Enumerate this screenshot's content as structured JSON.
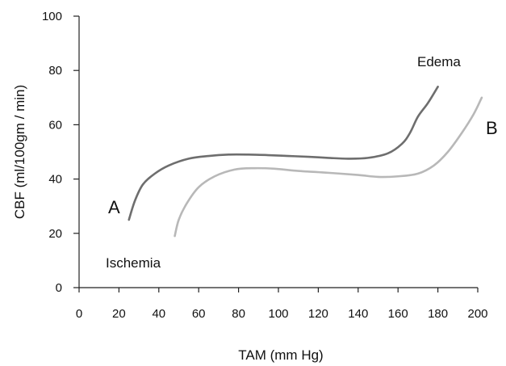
{
  "chart_data": {
    "type": "line",
    "title": "",
    "xlabel": "TAM (mm Hg)",
    "ylabel": "CBF (ml/100gm / min)",
    "xlim": [
      0,
      200
    ],
    "ylim": [
      0,
      100
    ],
    "x_ticks": [
      0,
      20,
      40,
      60,
      80,
      100,
      120,
      140,
      160,
      180,
      200
    ],
    "y_ticks": [
      0,
      20,
      40,
      60,
      80,
      100
    ],
    "grid": false,
    "series": [
      {
        "name": "A",
        "color": "#6e6e6e",
        "x": [
          25,
          28,
          32,
          38,
          45,
          55,
          65,
          75,
          85,
          95,
          105,
          115,
          125,
          135,
          145,
          155,
          162,
          166,
          170,
          175,
          180
        ],
        "y": [
          25,
          32,
          38,
          42,
          45,
          47.5,
          48.5,
          49,
          49,
          48.8,
          48.5,
          48.2,
          47.8,
          47.5,
          47.8,
          49.5,
          53,
          57,
          63,
          68,
          74
        ]
      },
      {
        "name": "B",
        "color": "#b8b8b8",
        "x": [
          48,
          50,
          54,
          60,
          68,
          78,
          88,
          98,
          110,
          125,
          140,
          150,
          160,
          170,
          178,
          185,
          192,
          198,
          202
        ],
        "y": [
          19,
          25,
          31,
          37,
          41,
          43.5,
          44,
          43.8,
          43,
          42.3,
          41.5,
          40.8,
          41,
          42,
          45,
          50,
          57,
          64,
          70
        ]
      }
    ],
    "annotations": {
      "series_a_label": "A",
      "series_b_label": "B",
      "edema": "Edema",
      "ischemia": "Ischemia"
    }
  }
}
